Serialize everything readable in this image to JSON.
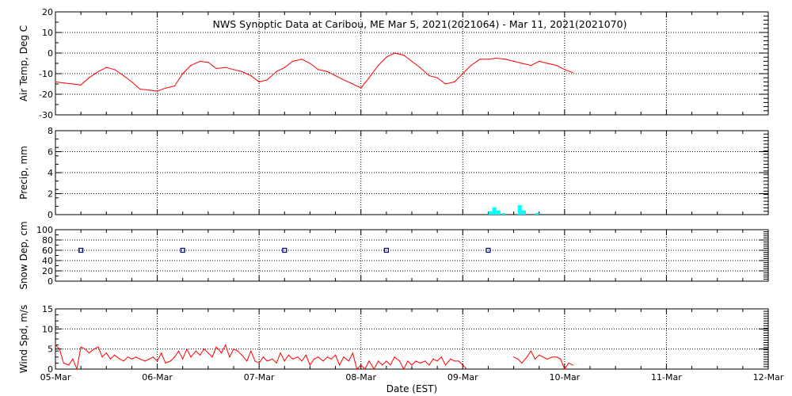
{
  "chart_data": {
    "type": "line",
    "title": "NWS Synoptic Data at Caribou, ME   Mar  5, 2021(2021064) - Mar 11, 2021(2021070)",
    "xlabel": "Date (EST)",
    "x_tick_labels": [
      "05-Mar",
      "06-Mar",
      "07-Mar",
      "08-Mar",
      "09-Mar",
      "10-Mar",
      "11-Mar",
      "12-Mar"
    ],
    "x_unit": "days since 05-Mar 00:00",
    "xlim": [
      0,
      7
    ],
    "grid": true,
    "colors": {
      "temp": "#ff0000",
      "precip": "#00ffff",
      "snow": "#000080",
      "wind": "#ff0000",
      "grid": "#000000"
    },
    "panels": [
      {
        "id": "temp",
        "type": "line",
        "ylabel": "Air Temp, Deg C",
        "ylim": [
          -30,
          20
        ],
        "yticks": [
          -30,
          -20,
          -10,
          0,
          10,
          20
        ],
        "series": [
          {
            "x": [
              0,
              0.08,
              0.17,
              0.25,
              0.33,
              0.42,
              0.5,
              0.58,
              0.67,
              0.75,
              0.83,
              0.92,
              1.0,
              1.08,
              1.17,
              1.25,
              1.33,
              1.42,
              1.5,
              1.58,
              1.67,
              1.75,
              1.83,
              1.92,
              2.0,
              2.08,
              2.17,
              2.25,
              2.33,
              2.42,
              2.5,
              2.58,
              2.67,
              2.75,
              2.83,
              2.92,
              3.0,
              3.08,
              3.17,
              3.25,
              3.33,
              3.42,
              3.5,
              3.58,
              3.67,
              3.75,
              3.83,
              3.92,
              4.0,
              4.08,
              4.17,
              4.25,
              4.33,
              4.42,
              4.5,
              4.58,
              4.67,
              4.75,
              4.83,
              4.92,
              5.0,
              5.08
            ],
            "y": [
              -14,
              -14.5,
              -15,
              -15.5,
              -12,
              -9,
              -7,
              -8,
              -11,
              -14,
              -17.5,
              -18,
              -18.5,
              -17,
              -16,
              -10,
              -6,
              -4,
              -4.5,
              -7.5,
              -7,
              -8,
              -9,
              -11,
              -14,
              -13,
              -9,
              -7,
              -4,
              -3,
              -5,
              -8,
              -9,
              -11,
              -13,
              -15,
              -17,
              -12,
              -6,
              -2,
              0,
              -1,
              -4,
              -7,
              -11,
              -12,
              -15,
              -14,
              -10,
              -6,
              -3,
              -3,
              -2.5,
              -3,
              -4,
              -5,
              -6,
              -4,
              -5,
              -6,
              -8,
              -9.5
            ]
          }
        ]
      },
      {
        "id": "precip",
        "type": "bar",
        "ylabel": "Precip, mm",
        "ylim": [
          0,
          8
        ],
        "yticks": [
          0,
          2,
          4,
          6,
          8
        ],
        "series": [
          {
            "x": [
              4.25,
              4.29,
              4.33,
              4.38,
              4.54,
              4.58,
              4.71
            ],
            "y": [
              0.3,
              0.7,
              0.4,
              0.15,
              0.9,
              0.4,
              0.15
            ]
          }
        ]
      },
      {
        "id": "snow",
        "type": "scatter",
        "ylabel": "Snow Dep, cm",
        "ylim": [
          0,
          100
        ],
        "yticks": [
          0,
          20,
          40,
          60,
          80,
          100
        ],
        "series": [
          {
            "x": [
              0.25,
              1.25,
              2.25,
              3.25,
              4.25
            ],
            "y": [
              60,
              60,
              60,
              60,
              60
            ]
          }
        ]
      },
      {
        "id": "wind",
        "type": "line",
        "ylabel": "Wind Spd, m/s",
        "ylim": [
          0,
          15
        ],
        "yticks": [
          0,
          5,
          10,
          15
        ],
        "series": [
          {
            "x": [
              0,
              0.04,
              0.08,
              0.13,
              0.17,
              0.21,
              0.25,
              0.29,
              0.33,
              0.38,
              0.42,
              0.46,
              0.5,
              0.54,
              0.58,
              0.63,
              0.67,
              0.71,
              0.75,
              0.79,
              0.83,
              0.88,
              0.92,
              0.96,
              1.0,
              1.04,
              1.08,
              1.13,
              1.17,
              1.21,
              1.25,
              1.29,
              1.33,
              1.38,
              1.42,
              1.46,
              1.5,
              1.54,
              1.58,
              1.63,
              1.67,
              1.71,
              1.75,
              1.79,
              1.83,
              1.88,
              1.92,
              1.96,
              2.0,
              2.04,
              2.08,
              2.13,
              2.17,
              2.21,
              2.25,
              2.29,
              2.33,
              2.38,
              2.42,
              2.46,
              2.5,
              2.54,
              2.58,
              2.63,
              2.67,
              2.71,
              2.75,
              2.79,
              2.83,
              2.88,
              2.92,
              2.96,
              3.0,
              3.04,
              3.08,
              3.13,
              3.17,
              3.21,
              3.25,
              3.29,
              3.33,
              3.38,
              3.42,
              3.46,
              3.5,
              3.54,
              3.58,
              3.63,
              3.67,
              3.71,
              3.75,
              3.79,
              3.83,
              3.88,
              3.92,
              3.96,
              4.0,
              4.04,
              4.5,
              4.54,
              4.58,
              4.63,
              4.67,
              4.71,
              4.75,
              4.79,
              4.83,
              4.88,
              4.92,
              4.96,
              5.0,
              5.04,
              5.08
            ],
            "y": [
              6,
              5,
              1.5,
              1,
              2.5,
              0,
              5.5,
              5,
              4,
              5,
              5.5,
              3,
              4,
              2.5,
              3.5,
              2.5,
              2,
              3,
              2.5,
              3,
              2.5,
              2,
              2.5,
              3,
              2,
              4,
              1.5,
              2,
              3,
              4.5,
              2.5,
              5,
              3,
              4.5,
              3.5,
              5,
              4,
              3,
              5.5,
              4,
              6,
              3,
              5,
              4.5,
              3.5,
              2,
              4.5,
              2,
              1.5,
              3,
              2,
              2.5,
              1.5,
              4,
              2,
              3.5,
              2.5,
              3,
              2,
              3.5,
              1,
              2.5,
              3,
              2,
              3,
              2.5,
              3.5,
              1,
              3,
              2,
              4,
              0,
              1,
              0,
              2,
              0,
              2,
              1,
              2,
              1,
              3,
              2,
              0,
              2,
              1,
              2,
              1.5,
              2,
              1,
              2.5,
              2,
              3,
              1,
              2.5,
              2,
              2,
              1,
              0,
              3,
              2.5,
              1.5,
              3,
              4.5,
              2.5,
              3.5,
              3,
              2.5,
              3,
              3,
              2.5,
              0,
              1.5,
              1
            ]
          }
        ]
      }
    ]
  }
}
